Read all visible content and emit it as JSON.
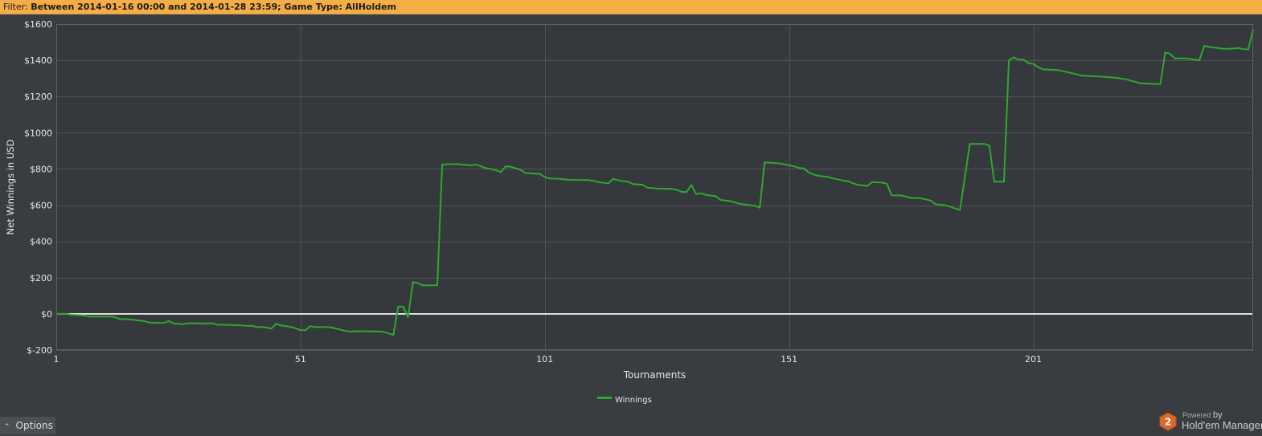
{
  "filter": {
    "label": "Filter: ",
    "text": "Between 2014-01-16 00:00 and 2014-01-28 23:59; Game Type: AllHoldem"
  },
  "options": {
    "label": "Options",
    "icon": "chevron-up-icon"
  },
  "branding": {
    "powered": "Powered",
    "by": "by",
    "name": "Hold'em Manager",
    "badge": "2",
    "badge_color": "#d9692a"
  },
  "colors": {
    "background": "#393c40",
    "plot_background": "#35383c",
    "filter_bar": "#f5ad45",
    "line": "#2ea82e",
    "zero_line": "#ffffff",
    "grid": "#50545a",
    "text": "#e6e6e6"
  },
  "chart_data": {
    "type": "line",
    "xlabel": "Tournaments",
    "ylabel": "Net Winnings in USD",
    "xlim": [
      1,
      242
    ],
    "ylim": [
      -200,
      1600
    ],
    "xticks": [
      1,
      51,
      101,
      151,
      201
    ],
    "xtick_labels": [
      "1",
      "51",
      "101",
      "151",
      "201"
    ],
    "yticks": [
      -200,
      0,
      200,
      400,
      600,
      800,
      1000,
      1200,
      1400,
      1600
    ],
    "ytick_labels": [
      "$-200",
      "$0",
      "$200",
      "$400",
      "$600",
      "$800",
      "$1000",
      "$1200",
      "$1400",
      "$1600"
    ],
    "grid": true,
    "zero_line": true,
    "legend": {
      "position": "bottom-center",
      "entries": [
        "Winnings"
      ]
    },
    "series": [
      {
        "name": "Winnings",
        "points": [
          [
            1,
            0
          ],
          [
            3,
            0
          ],
          [
            4,
            -5
          ],
          [
            6,
            -7
          ],
          [
            7,
            -12
          ],
          [
            8,
            -15
          ],
          [
            12,
            -15
          ],
          [
            13,
            -18
          ],
          [
            14,
            -28
          ],
          [
            16,
            -30
          ],
          [
            18,
            -37
          ],
          [
            19,
            -40
          ],
          [
            20,
            -48
          ],
          [
            23,
            -50
          ],
          [
            24,
            -40
          ],
          [
            25,
            -53
          ],
          [
            27,
            -57
          ],
          [
            28,
            -52
          ],
          [
            33,
            -53
          ],
          [
            34,
            -60
          ],
          [
            38,
            -62
          ],
          [
            40,
            -66
          ],
          [
            41,
            -66
          ],
          [
            42,
            -72
          ],
          [
            44,
            -74
          ],
          [
            45,
            -82
          ],
          [
            46,
            -55
          ],
          [
            47,
            -64
          ],
          [
            49,
            -72
          ],
          [
            50,
            -80
          ],
          [
            51,
            -90
          ],
          [
            52,
            -90
          ],
          [
            53,
            -68
          ],
          [
            54,
            -73
          ],
          [
            57,
            -73
          ],
          [
            58,
            -80
          ],
          [
            59,
            -86
          ],
          [
            60,
            -93
          ],
          [
            61,
            -98
          ],
          [
            62,
            -96
          ],
          [
            67,
            -97
          ],
          [
            68,
            -100
          ],
          [
            69,
            -108
          ],
          [
            70,
            -116
          ],
          [
            71,
            40
          ],
          [
            72,
            40
          ],
          [
            73,
            -18
          ],
          [
            74,
            175
          ],
          [
            75,
            170
          ],
          [
            76,
            158
          ],
          [
            79,
            158
          ],
          [
            80,
            825
          ],
          [
            83,
            827
          ],
          [
            86,
            820
          ],
          [
            87,
            824
          ],
          [
            88,
            814
          ],
          [
            89,
            804
          ],
          [
            90,
            800
          ],
          [
            91,
            793
          ],
          [
            92,
            782
          ],
          [
            93,
            815
          ],
          [
            94,
            812
          ],
          [
            96,
            796
          ],
          [
            97,
            778
          ],
          [
            99,
            774
          ],
          [
            100,
            772
          ],
          [
            101,
            755
          ],
          [
            102,
            748
          ],
          [
            104,
            746
          ],
          [
            106,
            740
          ],
          [
            110,
            739
          ],
          [
            112,
            728
          ],
          [
            114,
            720
          ],
          [
            115,
            745
          ],
          [
            116,
            738
          ],
          [
            117,
            733
          ],
          [
            118,
            730
          ],
          [
            119,
            717
          ],
          [
            121,
            713
          ],
          [
            122,
            697
          ],
          [
            124,
            692
          ],
          [
            127,
            690
          ],
          [
            128,
            685
          ],
          [
            129,
            674
          ],
          [
            130,
            672
          ],
          [
            131,
            712
          ],
          [
            132,
            661
          ],
          [
            133,
            666
          ],
          [
            134,
            657
          ],
          [
            136,
            650
          ],
          [
            137,
            629
          ],
          [
            139,
            622
          ],
          [
            141,
            607
          ],
          [
            144,
            597
          ],
          [
            145,
            586
          ],
          [
            146,
            836
          ],
          [
            149,
            831
          ],
          [
            150,
            826
          ],
          [
            151,
            820
          ],
          [
            152,
            815
          ],
          [
            153,
            806
          ],
          [
            154,
            803
          ],
          [
            155,
            782
          ],
          [
            156,
            770
          ],
          [
            157,
            762
          ],
          [
            159,
            756
          ],
          [
            160,
            748
          ],
          [
            162,
            737
          ],
          [
            163,
            733
          ],
          [
            164,
            722
          ],
          [
            165,
            713
          ],
          [
            167,
            706
          ],
          [
            168,
            728
          ],
          [
            170,
            725
          ],
          [
            171,
            718
          ],
          [
            172,
            655
          ],
          [
            174,
            654
          ],
          [
            176,
            640
          ],
          [
            178,
            638
          ],
          [
            179,
            632
          ],
          [
            180,
            625
          ],
          [
            181,
            605
          ],
          [
            183,
            600
          ],
          [
            186,
            573
          ],
          [
            188,
            938
          ],
          [
            191,
            938
          ],
          [
            192,
            930
          ],
          [
            193,
            730
          ],
          [
            195,
            730
          ],
          [
            196,
            1400
          ],
          [
            197,
            1416
          ],
          [
            198,
            1404
          ],
          [
            199,
            1403
          ],
          [
            200,
            1385
          ],
          [
            201,
            1380
          ],
          [
            202,
            1362
          ],
          [
            203,
            1350
          ],
          [
            206,
            1346
          ],
          [
            208,
            1335
          ],
          [
            211,
            1315
          ],
          [
            215,
            1310
          ],
          [
            218,
            1303
          ],
          [
            220,
            1295
          ],
          [
            223,
            1273
          ],
          [
            227,
            1268
          ],
          [
            228,
            1443
          ],
          [
            229,
            1436
          ],
          [
            230,
            1410
          ],
          [
            232,
            1411
          ],
          [
            234,
            1404
          ],
          [
            235,
            1400
          ],
          [
            236,
            1480
          ],
          [
            237,
            1474
          ],
          [
            239,
            1467
          ],
          [
            240,
            1463
          ],
          [
            242,
            1465
          ],
          [
            243,
            1468
          ],
          [
            244,
            1462
          ],
          [
            245,
            1460
          ],
          [
            246,
            1570
          ]
        ]
      }
    ]
  }
}
